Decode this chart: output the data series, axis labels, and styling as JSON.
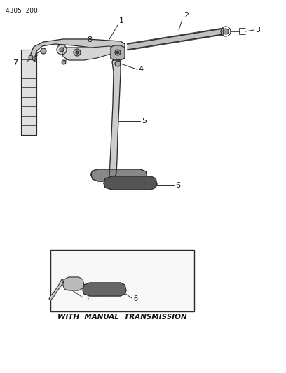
{
  "header_text": "4305  200",
  "background_color": "#ffffff",
  "line_color": "#2a2a2a",
  "text_color": "#111111",
  "fig_width": 4.08,
  "fig_height": 5.33,
  "dpi": 100,
  "bottom_label": "WITH  MANUAL  TRANSMISSION",
  "part_labels": [
    "1",
    "2",
    "3",
    "4",
    "5",
    "6",
    "7",
    "8"
  ]
}
